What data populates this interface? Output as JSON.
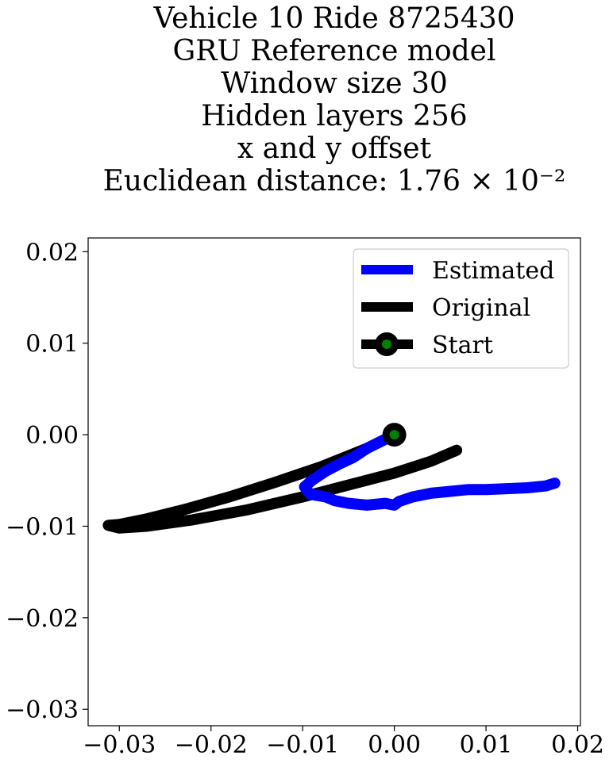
{
  "chart_data": {
    "type": "line",
    "title_lines": [
      "Vehicle 10 Ride 8725430",
      "GRU Reference model",
      "Window size 30",
      "Hidden layers 256",
      "x and y offset",
      "Euclidean distance: 1.76 × 10⁻²"
    ],
    "xlabel": "",
    "ylabel": "",
    "xlim": [
      -0.0334,
      0.0203
    ],
    "ylim": [
      -0.0318,
      0.0215
    ],
    "xticks": [
      -0.03,
      -0.02,
      -0.01,
      0.0,
      0.01,
      0.02
    ],
    "xtick_labels": [
      "−0.03",
      "−0.02",
      "−0.01",
      "0.00",
      "0.01",
      "0.02"
    ],
    "yticks": [
      0.02,
      0.01,
      0.0,
      -0.01,
      -0.02,
      -0.03
    ],
    "ytick_labels": [
      "0.02",
      "0.01",
      "0.00",
      "−0.01",
      "−0.02",
      "−0.03"
    ],
    "grid": false,
    "legend_position": "top-right",
    "series": [
      {
        "name": "Estimated",
        "color": "#0000ff",
        "points": [
          [
            0.0,
            0.0
          ],
          [
            -0.001,
            -0.0005
          ],
          [
            -0.002,
            -0.001
          ],
          [
            -0.003,
            -0.0015
          ],
          [
            -0.0045,
            -0.0025
          ],
          [
            -0.006,
            -0.0032
          ],
          [
            -0.0075,
            -0.004
          ],
          [
            -0.009,
            -0.005
          ],
          [
            -0.0098,
            -0.0057
          ],
          [
            -0.0092,
            -0.0065
          ],
          [
            -0.0075,
            -0.0068
          ],
          [
            -0.0065,
            -0.0072
          ],
          [
            -0.005,
            -0.0075
          ],
          [
            -0.003,
            -0.0077
          ],
          [
            -0.001,
            -0.0075
          ],
          [
            0.0,
            -0.0077
          ],
          [
            0.0005,
            -0.0073
          ],
          [
            0.002,
            -0.0068
          ],
          [
            0.004,
            -0.0064
          ],
          [
            0.006,
            -0.0062
          ],
          [
            0.008,
            -0.006
          ],
          [
            0.01,
            -0.006
          ],
          [
            0.012,
            -0.0059
          ],
          [
            0.0145,
            -0.0058
          ],
          [
            0.0165,
            -0.0056
          ],
          [
            0.0175,
            -0.0053
          ]
        ]
      },
      {
        "name": "Original",
        "color": "#000000",
        "points": [
          [
            0.0,
            0.0
          ],
          [
            -0.003,
            -0.0015
          ],
          [
            -0.008,
            -0.0035
          ],
          [
            -0.013,
            -0.0052
          ],
          [
            -0.018,
            -0.0068
          ],
          [
            -0.023,
            -0.0082
          ],
          [
            -0.027,
            -0.0092
          ],
          [
            -0.03,
            -0.0098
          ],
          [
            -0.0312,
            -0.0099
          ],
          [
            -0.03,
            -0.0102
          ],
          [
            -0.027,
            -0.01
          ],
          [
            -0.022,
            -0.0093
          ],
          [
            -0.016,
            -0.0082
          ],
          [
            -0.01,
            -0.0068
          ],
          [
            -0.005,
            -0.0055
          ],
          [
            0.0,
            -0.0042
          ],
          [
            0.004,
            -0.0029
          ],
          [
            0.0068,
            -0.0017
          ]
        ]
      }
    ],
    "start": {
      "name": "Start",
      "x": 0.0,
      "y": 0.0,
      "marker_edge": "#000000",
      "marker_face": "#008000"
    }
  }
}
